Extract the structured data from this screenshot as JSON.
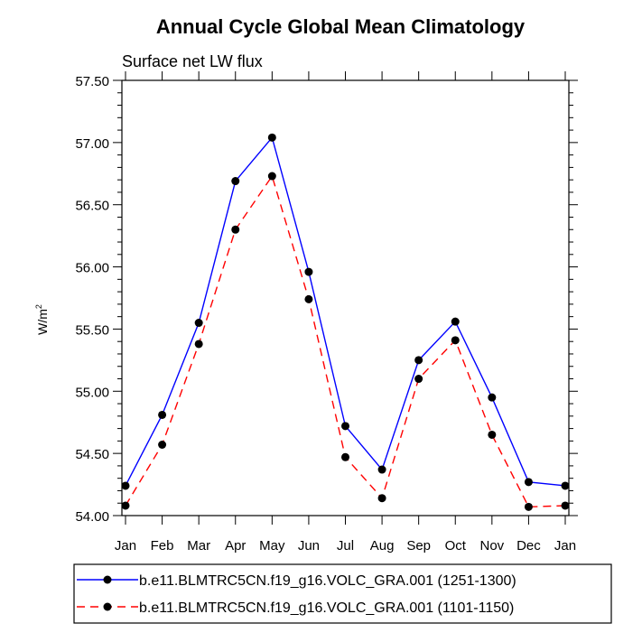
{
  "chart_data": {
    "type": "line",
    "title": "Annual Cycle Global Mean Climatology",
    "subtitle": "Surface net LW flux",
    "ylabel": {
      "base": "W/m",
      "sup": "2"
    },
    "xlabel": "",
    "categories": [
      "Jan",
      "Feb",
      "Mar",
      "Apr",
      "May",
      "Jun",
      "Jul",
      "Aug",
      "Sep",
      "Oct",
      "Nov",
      "Dec",
      "Jan"
    ],
    "ylim": [
      54.0,
      57.5
    ],
    "yticks": [
      "54.00",
      "54.50",
      "55.00",
      "55.50",
      "56.00",
      "56.50",
      "57.00",
      "57.50"
    ],
    "ytick_values": [
      54.0,
      54.5,
      55.0,
      55.5,
      56.0,
      56.5,
      57.0,
      57.5
    ],
    "yminor_step": 0.1,
    "legend_position": "bottom",
    "series": [
      {
        "name": "b.e11.BLMTRC5CN.f19_g16.VOLC_GRA.001 (1251-1300)",
        "color": "#0000ff",
        "dash": "solid",
        "values": [
          54.24,
          54.81,
          55.55,
          56.69,
          57.04,
          55.96,
          54.72,
          54.37,
          55.25,
          55.56,
          54.95,
          54.27,
          54.24
        ]
      },
      {
        "name": "b.e11.BLMTRC5CN.f19_g16.VOLC_GRA.001 (1101-1150)",
        "color": "#ff0000",
        "dash": "dashed",
        "values": [
          54.08,
          54.57,
          55.38,
          56.3,
          56.73,
          55.74,
          54.47,
          54.14,
          55.1,
          55.41,
          54.65,
          54.07,
          54.08
        ]
      }
    ]
  }
}
